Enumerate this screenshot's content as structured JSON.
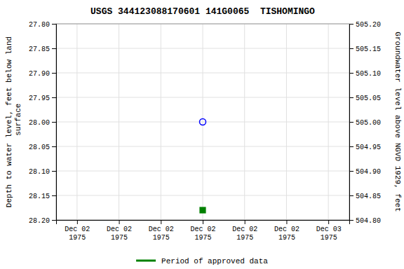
{
  "chart_data": {
    "type": "scatter",
    "title": "USGS 344123088170601 141G0065  TISHOMINGO",
    "y_label": "Depth to water level, feet below land\n surface",
    "y2_label": "Groundwater level above NGVD 1929, feet",
    "categories": [
      "Dec 02\n1975",
      "Dec 02\n1975",
      "Dec 02\n1975",
      "Dec 02\n1975",
      "Dec 02\n1975",
      "Dec 02\n1975",
      "Dec 03\n1975"
    ],
    "series": [
      {
        "color": "blue",
        "marker": "open-circle",
        "values": [
          null,
          null,
          null,
          28.0,
          null,
          null,
          null
        ]
      },
      {
        "color": "green",
        "marker": "square",
        "values": [
          null,
          null,
          null,
          28.18,
          null,
          null,
          null
        ]
      }
    ],
    "ylim": [
      28.2,
      27.8
    ],
    "yticks": [
      {
        "value": 27.8,
        "label": "27.80"
      },
      27.85,
      {
        "value": 27.9,
        "label": "27.90"
      },
      27.95,
      {
        "value": 28.0,
        "label": "28.00"
      },
      28.05,
      {
        "value": 28.1,
        "label": "28.10"
      },
      28.15,
      {
        "value": 28.2,
        "label": "28.20"
      }
    ],
    "y2lim": [
      504.8,
      505.2
    ],
    "y2ticks": [
      {
        "value": 505.2,
        "label": "505.20"
      },
      505.15,
      {
        "value": 505.1,
        "label": "505.10"
      },
      505.05,
      {
        "value": 505.0,
        "label": "505.00"
      },
      504.95,
      {
        "value": 504.9,
        "label": "504.90"
      },
      504.85,
      {
        "value": 504.8,
        "label": "504.80"
      }
    ],
    "grid": true,
    "legend_entries": [
      {
        "name": "Period of approved data",
        "color": "green"
      }
    ]
  }
}
